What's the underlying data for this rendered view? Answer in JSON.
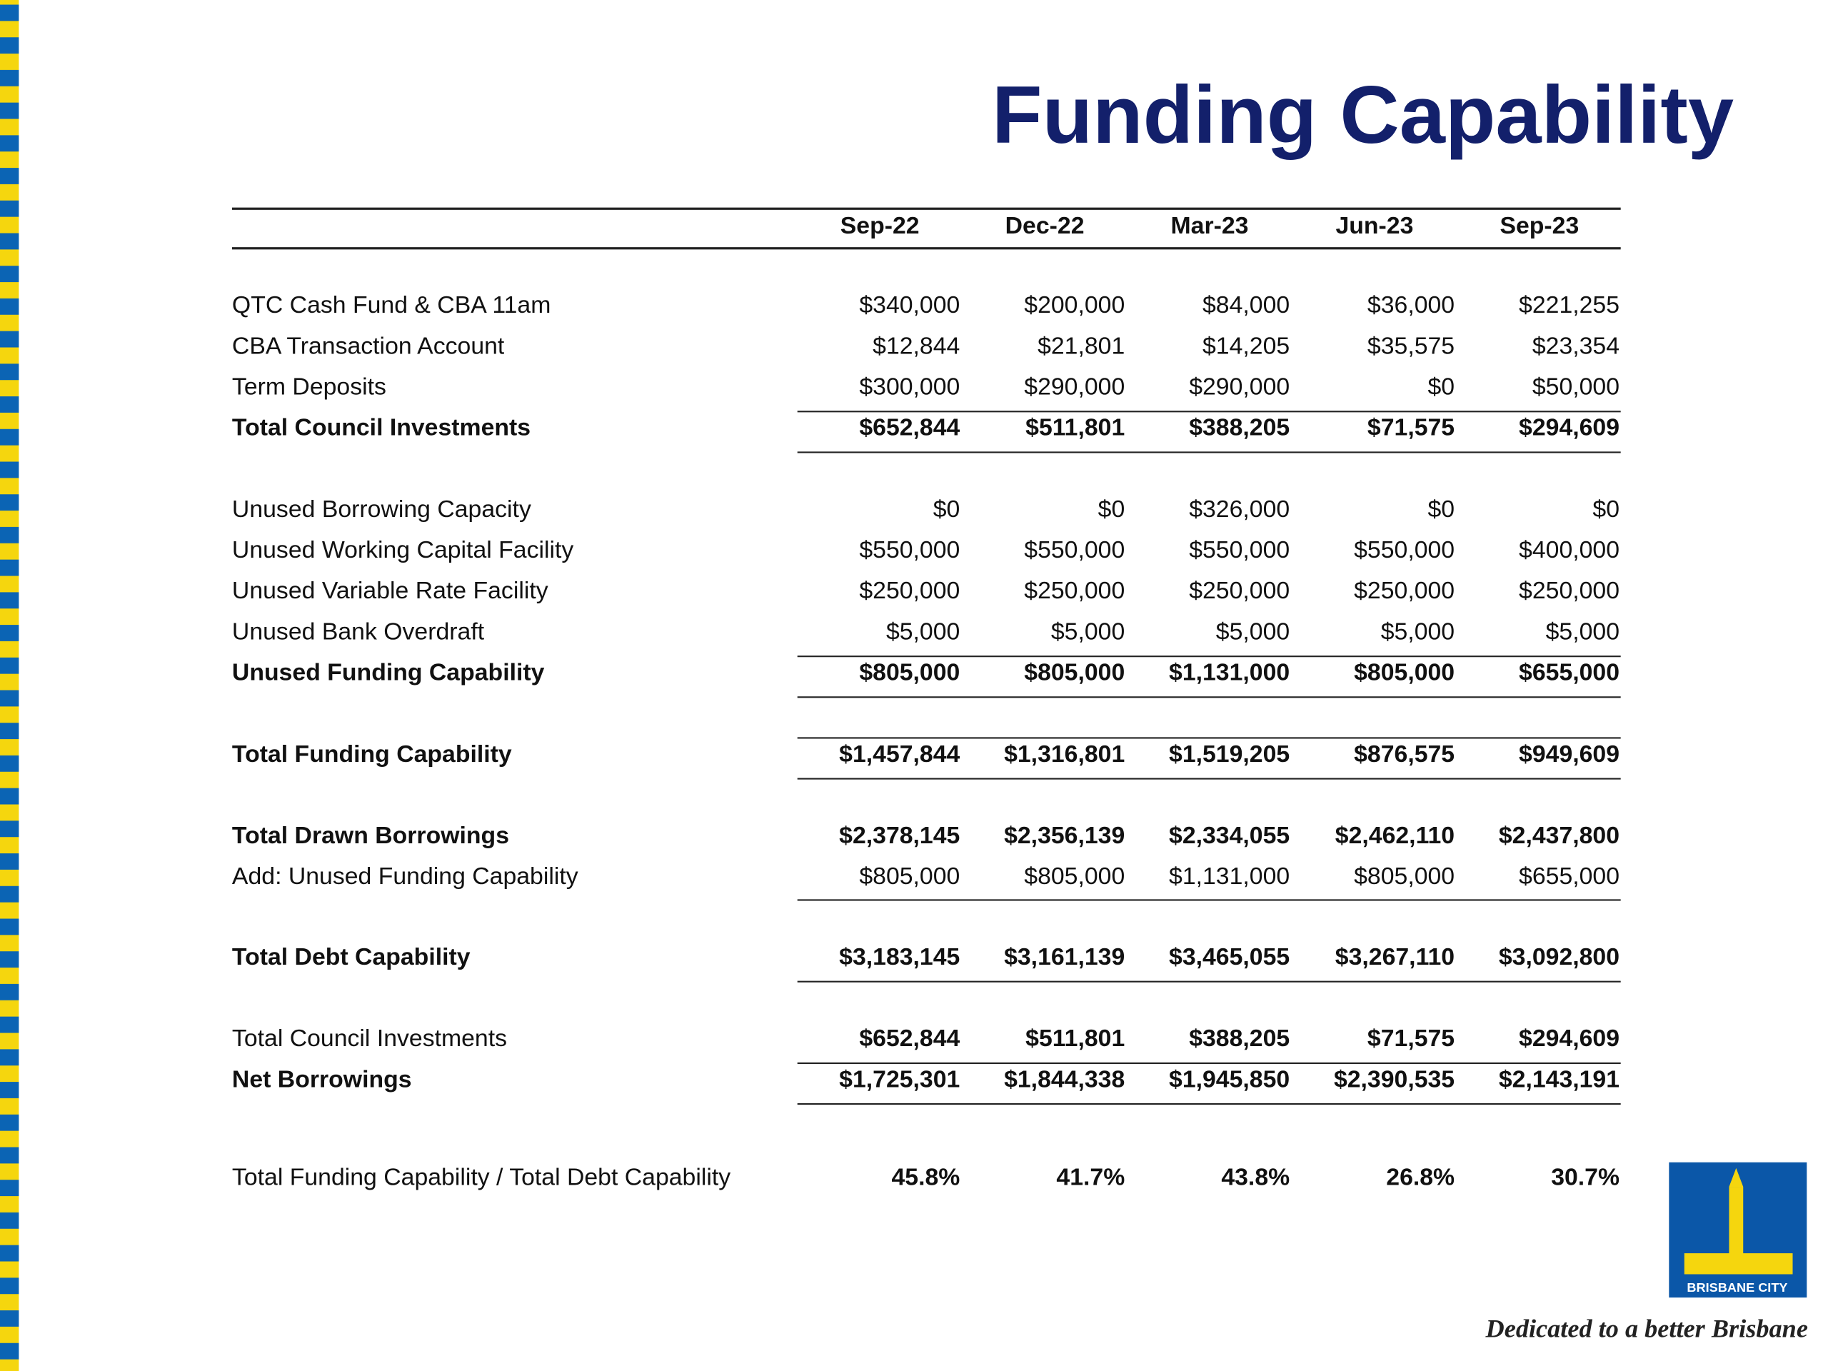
{
  "header": {
    "title": "Funding Capability"
  },
  "table": {
    "columns": [
      "Sep-22",
      "Dec-22",
      "Mar-23",
      "Jun-23",
      "Sep-23"
    ],
    "rows": [
      {
        "label": "QTC Cash Fund & CBA 11am",
        "bold": false,
        "values": [
          "$340,000",
          "$200,000",
          "$84,000",
          "$36,000",
          "$221,255"
        ]
      },
      {
        "label": "CBA Transaction Account",
        "bold": false,
        "values": [
          "$12,844",
          "$21,801",
          "$14,205",
          "$35,575",
          "$23,354"
        ]
      },
      {
        "label": "Term Deposits",
        "bold": false,
        "values": [
          "$300,000",
          "$290,000",
          "$290,000",
          "$0",
          "$50,000"
        ]
      },
      {
        "label": "Total Council Investments",
        "bold": true,
        "values": [
          "$652,844",
          "$511,801",
          "$388,205",
          "$71,575",
          "$294,609"
        ]
      },
      {
        "label": "Unused Borrowing Capacity",
        "bold": false,
        "values": [
          "$0",
          "$0",
          "$326,000",
          "$0",
          "$0"
        ]
      },
      {
        "label": "Unused Working Capital Facility",
        "bold": false,
        "values": [
          "$550,000",
          "$550,000",
          "$550,000",
          "$550,000",
          "$400,000"
        ]
      },
      {
        "label": "Unused Variable Rate Facility",
        "bold": false,
        "values": [
          "$250,000",
          "$250,000",
          "$250,000",
          "$250,000",
          "$250,000"
        ]
      },
      {
        "label": "Unused Bank Overdraft",
        "bold": false,
        "values": [
          "$5,000",
          "$5,000",
          "$5,000",
          "$5,000",
          "$5,000"
        ]
      },
      {
        "label": "Unused Funding Capability",
        "bold": true,
        "values": [
          "$805,000",
          "$805,000",
          "$1,131,000",
          "$805,000",
          "$655,000"
        ]
      },
      {
        "label": "Total Funding Capability",
        "bold": true,
        "values": [
          "$1,457,844",
          "$1,316,801",
          "$1,519,205",
          "$876,575",
          "$949,609"
        ]
      },
      {
        "label": "Total Drawn Borrowings",
        "bold": true,
        "values": [
          "$2,378,145",
          "$2,356,139",
          "$2,334,055",
          "$2,462,110",
          "$2,437,800"
        ]
      },
      {
        "label": "Add: Unused Funding Capability",
        "bold": false,
        "values": [
          "$805,000",
          "$805,000",
          "$1,131,000",
          "$805,000",
          "$655,000"
        ]
      },
      {
        "label": "Total Debt Capability",
        "bold": true,
        "values": [
          "$3,183,145",
          "$3,161,139",
          "$3,465,055",
          "$3,267,110",
          "$3,092,800"
        ]
      },
      {
        "label": "Total Council Investments",
        "bold": false,
        "values_bold": true,
        "values": [
          "$652,844",
          "$511,801",
          "$388,205",
          "$71,575",
          "$294,609"
        ]
      },
      {
        "label": "Net Borrowings",
        "bold": true,
        "values": [
          "$1,725,301",
          "$1,844,338",
          "$1,945,850",
          "$2,390,535",
          "$2,143,191"
        ]
      },
      {
        "label": "Total Funding Capability / Total Debt Capability",
        "bold": false,
        "values_bold": true,
        "values": [
          "45.8%",
          "41.7%",
          "43.8%",
          "26.8%",
          "30.7%"
        ]
      }
    ]
  },
  "footer": {
    "logo_text": "BRISBANE CITY",
    "tagline": "Dedicated to a better Brisbane"
  }
}
